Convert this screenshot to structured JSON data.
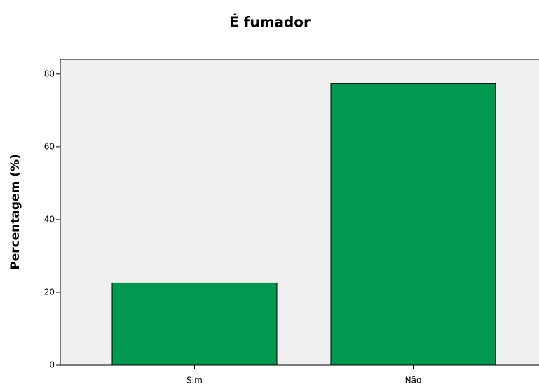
{
  "chart_data": {
    "type": "bar",
    "title": "É fumador",
    "y_label": "Percentagem (%)",
    "categories": [
      "Sim",
      "Não"
    ],
    "values": [
      22.6,
      77.4
    ],
    "color": "#00994f",
    "ylim": [
      0,
      84
    ],
    "yticks": [
      0,
      20,
      40,
      60,
      80
    ],
    "grid": false
  }
}
